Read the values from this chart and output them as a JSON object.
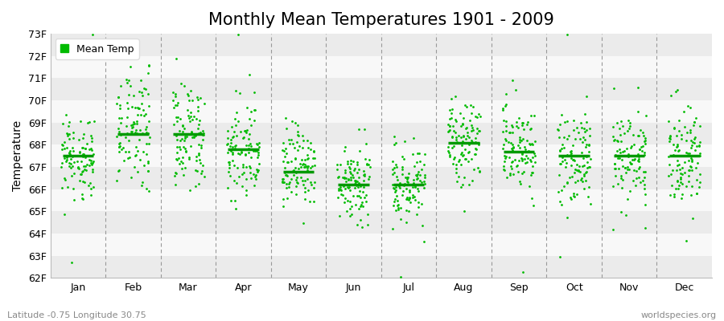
{
  "title": "Monthly Mean Temperatures 1901 - 2009",
  "ylabel": "Temperature",
  "xlabel_bottom_left": "Latitude -0.75 Longitude 30.75",
  "xlabel_bottom_right": "worldspecies.org",
  "dot_color": "#00bb00",
  "mean_line_color": "#009900",
  "background_bands": [
    "#ebebeb",
    "#f8f8f8"
  ],
  "ylim": [
    62,
    73
  ],
  "yticks": [
    62,
    63,
    64,
    65,
    66,
    67,
    68,
    69,
    70,
    71,
    72,
    73
  ],
  "ytick_labels": [
    "62F",
    "63F",
    "64F",
    "65F",
    "66F",
    "67F",
    "68F",
    "69F",
    "70F",
    "71F",
    "72F",
    "73F"
  ],
  "months": [
    "Jan",
    "Feb",
    "Mar",
    "Apr",
    "May",
    "Jun",
    "Jul",
    "Aug",
    "Sep",
    "Oct",
    "Nov",
    "Dec"
  ],
  "n_years": 109,
  "seed": 42,
  "monthly_means": [
    67.5,
    68.5,
    68.5,
    67.8,
    66.8,
    66.2,
    66.2,
    68.1,
    67.7,
    67.5,
    67.5,
    67.5
  ],
  "monthly_spreads": [
    1.0,
    1.3,
    1.1,
    1.0,
    0.9,
    0.85,
    0.85,
    0.9,
    1.0,
    1.0,
    1.1,
    1.1
  ],
  "title_fontsize": 15,
  "axis_fontsize": 10,
  "tick_fontsize": 9,
  "legend_fontsize": 9,
  "dot_size": 4,
  "mean_linewidth": 2.5
}
